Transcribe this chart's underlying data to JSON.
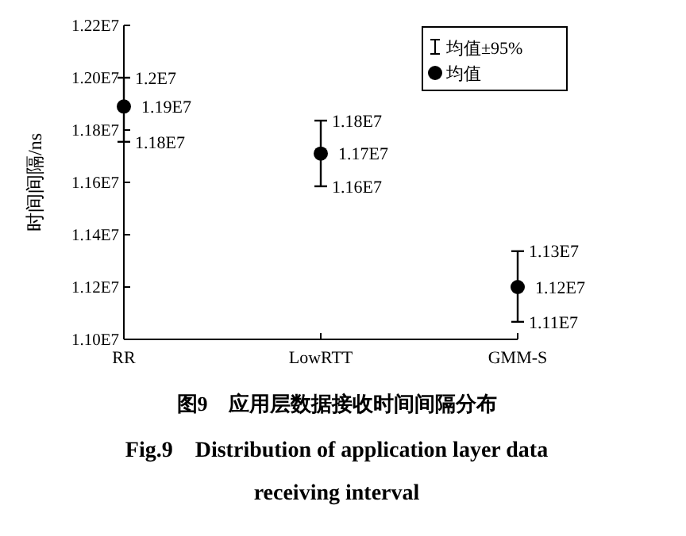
{
  "chart_data": {
    "type": "scatter",
    "title": "图9　应用层数据接收时间间隔分布",
    "subtitle": "Fig.9　Distribution of application layer data receiving interval",
    "ylabel": "时间间隔/ns",
    "categories": [
      "RR",
      "LowRTT",
      "GMM-S"
    ],
    "series": [
      {
        "name": "均值",
        "color": "#000000",
        "values": [
          11890000,
          11710000,
          11200000
        ],
        "errors": [
          [
            11755000,
            12000000
          ],
          [
            11585000,
            11836000
          ],
          [
            11067000,
            11337000
          ]
        ],
        "value_labels": [
          "1.19E7",
          "1.17E7",
          "1.12E7"
        ]
      }
    ],
    "annotations": [
      "均值±95%",
      {
        "text": "1.2E7",
        "x": "RR",
        "y": 12000000
      },
      {
        "text": "1.18E7",
        "x": "RR",
        "y": 11755000
      },
      {
        "text": "1.18E7",
        "x": "LowRTT",
        "y": 11836000
      },
      {
        "text": "1.16E7",
        "x": "LowRTT",
        "y": 11585000
      },
      {
        "text": "1.13E7",
        "x": "GMM-S",
        "y": 11337000
      },
      {
        "text": "1.11E7",
        "x": "GMM-S",
        "y": 11067000
      }
    ],
    "ylim": [
      11000000,
      12200000
    ],
    "yticks": [
      {
        "value": 11000000,
        "label": "1.10E7"
      },
      {
        "value": 11200000,
        "label": "1.12E7"
      },
      {
        "value": 11400000,
        "label": "1.14E7"
      },
      {
        "value": 11600000,
        "label": "1.16E7"
      },
      {
        "value": 11800000,
        "label": "1.18E7"
      },
      {
        "value": 12000000,
        "label": "1.20E7"
      },
      {
        "value": 12200000,
        "label": "1.22E7"
      }
    ],
    "grid": false,
    "legend": "top right",
    "marker": "circle"
  }
}
